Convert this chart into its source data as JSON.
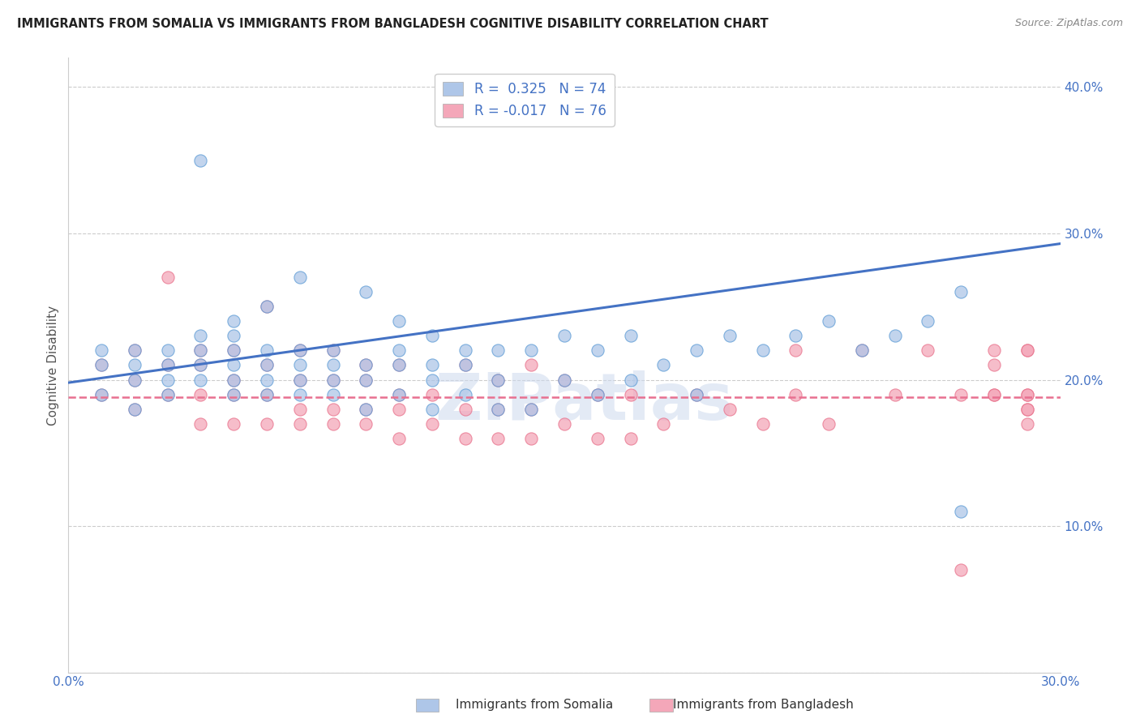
{
  "title": "IMMIGRANTS FROM SOMALIA VS IMMIGRANTS FROM BANGLADESH COGNITIVE DISABILITY CORRELATION CHART",
  "source": "Source: ZipAtlas.com",
  "ylabel": "Cognitive Disability",
  "x_min": 0.0,
  "x_max": 0.3,
  "y_min": 0.0,
  "y_max": 0.42,
  "x_ticks": [
    0.0,
    0.05,
    0.1,
    0.15,
    0.2,
    0.25,
    0.3
  ],
  "x_tick_labels": [
    "0.0%",
    "",
    "",
    "",
    "",
    "",
    "30.0%"
  ],
  "y_ticks": [
    0.0,
    0.1,
    0.2,
    0.3,
    0.4
  ],
  "y_tick_labels": [
    "",
    "10.0%",
    "20.0%",
    "30.0%",
    "40.0%"
  ],
  "somalia_color": "#aec6e8",
  "somalia_edge_color": "#5b9bd5",
  "bangladesh_color": "#f4a7b9",
  "bangladesh_edge_color": "#e8708a",
  "somalia_line_color": "#4472c4",
  "bangladesh_line_color": "#e87090",
  "legend_somalia_label": "R =  0.325   N = 74",
  "legend_bangladesh_label": "R = -0.017   N = 76",
  "watermark": "ZIPatlas",
  "somalia_line_start_y": 0.198,
  "somalia_line_end_y": 0.293,
  "bangladesh_line_y": 0.188,
  "somalia_scatter_x": [
    0.01,
    0.01,
    0.01,
    0.02,
    0.02,
    0.02,
    0.02,
    0.03,
    0.03,
    0.03,
    0.03,
    0.04,
    0.04,
    0.04,
    0.04,
    0.04,
    0.05,
    0.05,
    0.05,
    0.05,
    0.05,
    0.05,
    0.06,
    0.06,
    0.06,
    0.06,
    0.06,
    0.07,
    0.07,
    0.07,
    0.07,
    0.07,
    0.08,
    0.08,
    0.08,
    0.08,
    0.09,
    0.09,
    0.09,
    0.09,
    0.1,
    0.1,
    0.1,
    0.1,
    0.11,
    0.11,
    0.11,
    0.11,
    0.12,
    0.12,
    0.12,
    0.13,
    0.13,
    0.13,
    0.14,
    0.14,
    0.15,
    0.15,
    0.16,
    0.16,
    0.17,
    0.17,
    0.18,
    0.19,
    0.19,
    0.2,
    0.21,
    0.22,
    0.23,
    0.24,
    0.25,
    0.26,
    0.27,
    0.27
  ],
  "somalia_scatter_y": [
    0.19,
    0.21,
    0.22,
    0.18,
    0.2,
    0.21,
    0.22,
    0.19,
    0.2,
    0.21,
    0.22,
    0.2,
    0.21,
    0.22,
    0.23,
    0.35,
    0.19,
    0.2,
    0.21,
    0.22,
    0.23,
    0.24,
    0.19,
    0.2,
    0.21,
    0.22,
    0.25,
    0.19,
    0.2,
    0.21,
    0.22,
    0.27,
    0.19,
    0.2,
    0.21,
    0.22,
    0.18,
    0.2,
    0.21,
    0.26,
    0.19,
    0.21,
    0.22,
    0.24,
    0.18,
    0.2,
    0.21,
    0.23,
    0.19,
    0.21,
    0.22,
    0.18,
    0.2,
    0.22,
    0.18,
    0.22,
    0.2,
    0.23,
    0.19,
    0.22,
    0.2,
    0.23,
    0.21,
    0.19,
    0.22,
    0.23,
    0.22,
    0.23,
    0.24,
    0.22,
    0.23,
    0.24,
    0.26,
    0.11
  ],
  "bangladesh_scatter_x": [
    0.01,
    0.01,
    0.02,
    0.02,
    0.02,
    0.03,
    0.03,
    0.03,
    0.04,
    0.04,
    0.04,
    0.04,
    0.05,
    0.05,
    0.05,
    0.05,
    0.06,
    0.06,
    0.06,
    0.06,
    0.07,
    0.07,
    0.07,
    0.07,
    0.08,
    0.08,
    0.08,
    0.08,
    0.09,
    0.09,
    0.09,
    0.09,
    0.1,
    0.1,
    0.1,
    0.1,
    0.11,
    0.11,
    0.12,
    0.12,
    0.12,
    0.13,
    0.13,
    0.13,
    0.14,
    0.14,
    0.14,
    0.15,
    0.15,
    0.16,
    0.16,
    0.17,
    0.17,
    0.18,
    0.19,
    0.2,
    0.21,
    0.22,
    0.22,
    0.23,
    0.24,
    0.25,
    0.26,
    0.27,
    0.27,
    0.28,
    0.28,
    0.28,
    0.28,
    0.29,
    0.29,
    0.29,
    0.29,
    0.29,
    0.29,
    0.29
  ],
  "bangladesh_scatter_y": [
    0.19,
    0.21,
    0.18,
    0.2,
    0.22,
    0.19,
    0.21,
    0.27,
    0.17,
    0.19,
    0.21,
    0.22,
    0.17,
    0.19,
    0.2,
    0.22,
    0.17,
    0.19,
    0.21,
    0.25,
    0.17,
    0.18,
    0.2,
    0.22,
    0.17,
    0.18,
    0.2,
    0.22,
    0.17,
    0.18,
    0.2,
    0.21,
    0.16,
    0.18,
    0.19,
    0.21,
    0.17,
    0.19,
    0.16,
    0.18,
    0.21,
    0.16,
    0.18,
    0.2,
    0.16,
    0.18,
    0.21,
    0.17,
    0.2,
    0.16,
    0.19,
    0.16,
    0.19,
    0.17,
    0.19,
    0.18,
    0.17,
    0.19,
    0.22,
    0.17,
    0.22,
    0.19,
    0.22,
    0.19,
    0.07,
    0.19,
    0.22,
    0.21,
    0.19,
    0.22,
    0.19,
    0.18,
    0.17,
    0.22,
    0.19,
    0.18
  ]
}
